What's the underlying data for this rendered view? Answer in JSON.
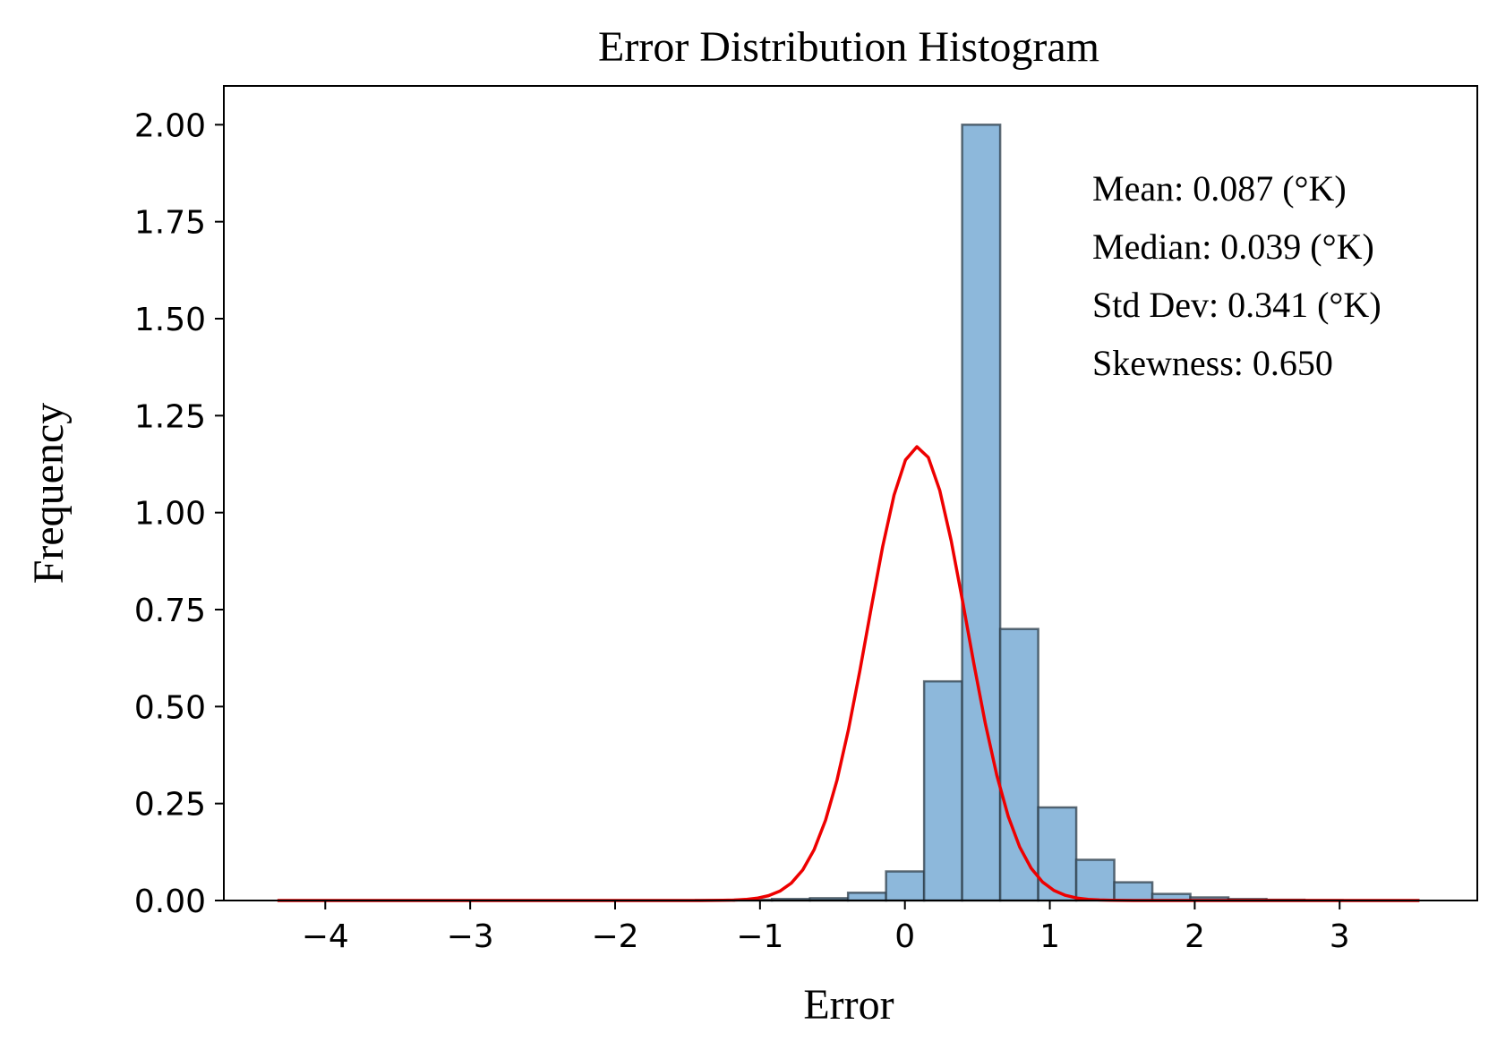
{
  "chart_data": {
    "type": "bar",
    "title": "Error Distribution Histogram",
    "xlabel": "Error",
    "ylabel": "Frequency",
    "xlim": [
      -4.7,
      3.95
    ],
    "ylim": [
      0,
      2.1
    ],
    "x_ticks": [
      -4,
      -3,
      -2,
      -1,
      0,
      1,
      2,
      3
    ],
    "x_tick_labels": [
      "−4",
      "−3",
      "−2",
      "−1",
      "0",
      "1",
      "2",
      "3"
    ],
    "y_ticks": [
      0,
      0.25,
      0.5,
      0.75,
      1.0,
      1.25,
      1.5,
      1.75,
      2.0
    ],
    "y_tick_labels": [
      "0.00",
      "0.25",
      "0.50",
      "0.75",
      "1.00",
      "1.25",
      "1.50",
      "1.75",
      "2.00"
    ],
    "grid": false,
    "bins": {
      "start": -4.33,
      "width": 0.2625,
      "values": [
        0,
        0,
        0,
        0,
        0,
        0,
        0,
        0,
        0,
        0,
        0,
        0.001,
        0.002,
        0.004,
        0.006,
        0.02,
        0.075,
        0.565,
        2.0,
        0.7,
        0.24,
        0.105,
        0.047,
        0.017,
        0.008,
        0.004,
        0.002,
        0.001,
        0.0005,
        0.0005
      ]
    },
    "bar_color": "#8db8db",
    "bar_edge_color": "#2e3d4a",
    "curve": {
      "type": "normal-pdf",
      "mean": 0.087,
      "std": 0.341,
      "color": "#ee0000",
      "x_range": [
        -4.33,
        3.55
      ]
    },
    "stats_annotation": [
      "Mean: 0.087 (°K)",
      "Median: 0.039 (°K)",
      "Std Dev: 0.341 (°K)",
      "Skewness: 0.650"
    ],
    "stats_placement": "top-right"
  }
}
